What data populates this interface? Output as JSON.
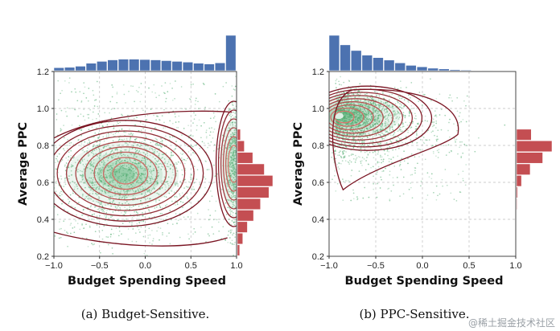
{
  "chart_data": [
    {
      "type": "scatter",
      "subtype": "joint-kde",
      "caption": "(a)  Budget-Sensitive.",
      "xlabel": "Budget Spending Speed",
      "ylabel": "Average PPC",
      "xlim": [
        -1.0,
        1.0
      ],
      "ylim": [
        0.2,
        1.2
      ],
      "xticks": [
        "−1.0",
        "−0.5",
        "0.0",
        "0.5",
        "1.0"
      ],
      "yticks": [
        "0.2",
        "0.4",
        "0.6",
        "0.8",
        "1.0",
        "1.2"
      ],
      "grid": true,
      "kde_center": [
        -0.25,
        0.64
      ],
      "secondary_mode": [
        0.97,
        0.7
      ],
      "top_histogram": {
        "bin_edges_from": -1.0,
        "bin_width": 0.1176,
        "counts": [
          0.08,
          0.09,
          0.12,
          0.2,
          0.25,
          0.29,
          0.31,
          0.31,
          0.3,
          0.29,
          0.27,
          0.25,
          0.23,
          0.2,
          0.18,
          0.21,
          0.95
        ]
      },
      "right_histogram": {
        "bin_edges_from": 0.2,
        "bin_width": 0.0625,
        "counts": [
          0.03,
          0.07,
          0.13,
          0.21,
          0.3,
          0.41,
          0.46,
          0.35,
          0.2,
          0.09,
          0.04
        ]
      }
    },
    {
      "type": "scatter",
      "subtype": "joint-kde",
      "caption": "(b)  PPC-Sensitive.",
      "xlabel": "Budget Spending Speed",
      "ylabel": "Average PPC",
      "xlim": [
        -1.0,
        1.0
      ],
      "ylim": [
        0.2,
        1.2
      ],
      "xticks": [
        "−1.0",
        "−0.5",
        "0.0",
        "0.5",
        "1.0"
      ],
      "yticks": [
        "0.2",
        "0.4",
        "0.6",
        "0.8",
        "1.0",
        "1.2"
      ],
      "grid": true,
      "kde_center": [
        -0.88,
        0.96
      ],
      "top_histogram": {
        "bin_edges_from": -1.0,
        "bin_width": 0.1176,
        "counts": [
          1.0,
          0.73,
          0.57,
          0.44,
          0.37,
          0.3,
          0.22,
          0.15,
          0.11,
          0.07,
          0.05,
          0.03,
          0.02,
          0.01,
          0.005,
          0.003,
          0.002
        ]
      },
      "right_histogram": {
        "bin_edges_from": 0.2,
        "bin_width": 0.0625,
        "counts": [
          0.0,
          0.0,
          0.0,
          0.0,
          0.01,
          0.02,
          0.09,
          0.25,
          0.48,
          0.65,
          0.27
        ]
      }
    }
  ],
  "watermark": "@稀土掘金技术社区",
  "colors": {
    "points": "#4aa86a",
    "contour_outer": "#7a1422",
    "contour_inner": "#d8756c",
    "top_hist": "#4c72b0",
    "right_hist": "#c44e52",
    "grid": "#bdbdbd"
  }
}
